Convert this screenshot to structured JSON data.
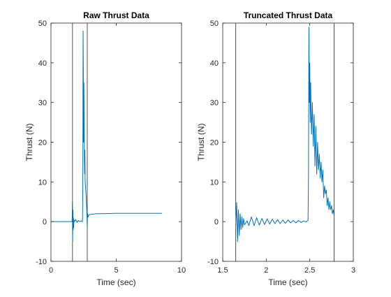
{
  "chart_data": [
    {
      "type": "line",
      "title": "Raw Thrust Data",
      "xlabel": "Time (sec)",
      "ylabel": "Thrust (N)",
      "xlim": [
        0,
        10
      ],
      "ylim": [
        -10,
        50
      ],
      "xticks": [
        0,
        5,
        10
      ],
      "yticks": [
        -10,
        0,
        10,
        20,
        30,
        40,
        50
      ],
      "grid": false,
      "box": true,
      "series_color": "#0072BD",
      "marker_color": "#262626",
      "vertical_markers": [
        1.65,
        2.78
      ],
      "series": [
        {
          "x": [
            0,
            0.5,
            1.0,
            1.5,
            1.62,
            1.64,
            1.66,
            1.68,
            1.7,
            1.72,
            1.74,
            1.76,
            1.8,
            1.9,
            2.0,
            2.1,
            2.2,
            2.3,
            2.4,
            2.42,
            2.44,
            2.46,
            2.48,
            2.5,
            2.52,
            2.54,
            2.56,
            2.58,
            2.6,
            2.62,
            2.66,
            2.7,
            2.74,
            2.76,
            2.78,
            2.8,
            2.84,
            2.9,
            3.0,
            3.5,
            4.0,
            5.0,
            6.0,
            7.0,
            8.0,
            8.5
          ],
          "y": [
            0,
            0,
            0,
            0,
            0,
            4.8,
            -5.0,
            3.0,
            -2.0,
            1.0,
            -1.5,
            0.5,
            0,
            0.5,
            -0.2,
            0.3,
            0,
            0.2,
            0,
            1.0,
            10.0,
            48.0,
            38.0,
            20.0,
            35.0,
            27.0,
            15.0,
            12.0,
            18.0,
            10.0,
            8.0,
            6.0,
            3.0,
            1.0,
            -1.5,
            2.0,
            1.2,
            1.7,
            1.8,
            2.0,
            2.0,
            2.1,
            2.1,
            2.1,
            2.1,
            2.1
          ]
        }
      ]
    },
    {
      "type": "line",
      "title": "Truncated Thrust Data",
      "xlabel": "Time (sec)",
      "ylabel": "Thrust (N)",
      "xlim": [
        1.5,
        3
      ],
      "ylim": [
        -10,
        50
      ],
      "xticks": [
        1.5,
        2,
        2.5,
        3
      ],
      "yticks": [
        -10,
        0,
        10,
        20,
        30,
        40,
        50
      ],
      "grid": false,
      "box": true,
      "series_color": "#0072BD",
      "marker_color": "#262626",
      "vertical_markers": [
        1.65,
        2.78
      ],
      "series": [
        {
          "x": [
            1.65,
            1.66,
            1.67,
            1.68,
            1.69,
            1.7,
            1.71,
            1.72,
            1.73,
            1.74,
            1.75,
            1.78,
            1.8,
            1.83,
            1.86,
            1.89,
            1.92,
            1.95,
            1.98,
            2.01,
            2.04,
            2.07,
            2.1,
            2.13,
            2.16,
            2.19,
            2.22,
            2.25,
            2.28,
            2.31,
            2.34,
            2.37,
            2.4,
            2.43,
            2.46,
            2.47,
            2.48,
            2.485,
            2.49,
            2.495,
            2.5,
            2.505,
            2.51,
            2.52,
            2.53,
            2.54,
            2.55,
            2.56,
            2.57,
            2.58,
            2.59,
            2.6,
            2.61,
            2.62,
            2.63,
            2.64,
            2.65,
            2.66,
            2.67,
            2.68,
            2.69,
            2.7,
            2.71,
            2.72,
            2.73,
            2.74,
            2.75,
            2.76,
            2.77,
            2.78
          ],
          "y": [
            -1.0,
            4.8,
            -5.0,
            3.0,
            -3.5,
            2.0,
            -2.0,
            1.2,
            -1.5,
            0.8,
            -0.8,
            0.2,
            -1.0,
            1.2,
            -1.0,
            1.0,
            -0.9,
            0.8,
            -0.7,
            0.7,
            -0.6,
            0.6,
            -0.5,
            0.5,
            -0.5,
            0.4,
            -0.4,
            0.4,
            -0.3,
            0.3,
            -0.3,
            0.3,
            -0.2,
            0.2,
            -0.1,
            0.2,
            0.3,
            10.0,
            49.0,
            30.0,
            40.0,
            25.0,
            35.0,
            22.0,
            30.0,
            19.0,
            27.0,
            14.0,
            24.0,
            12.0,
            20.0,
            13.0,
            17.0,
            11.0,
            15.0,
            10.0,
            13.0,
            6.0,
            9.0,
            7.0,
            8.0,
            4.0,
            6.0,
            3.0,
            5.0,
            3.0,
            4.0,
            2.0,
            3.0,
            1.5
          ]
        }
      ]
    }
  ]
}
